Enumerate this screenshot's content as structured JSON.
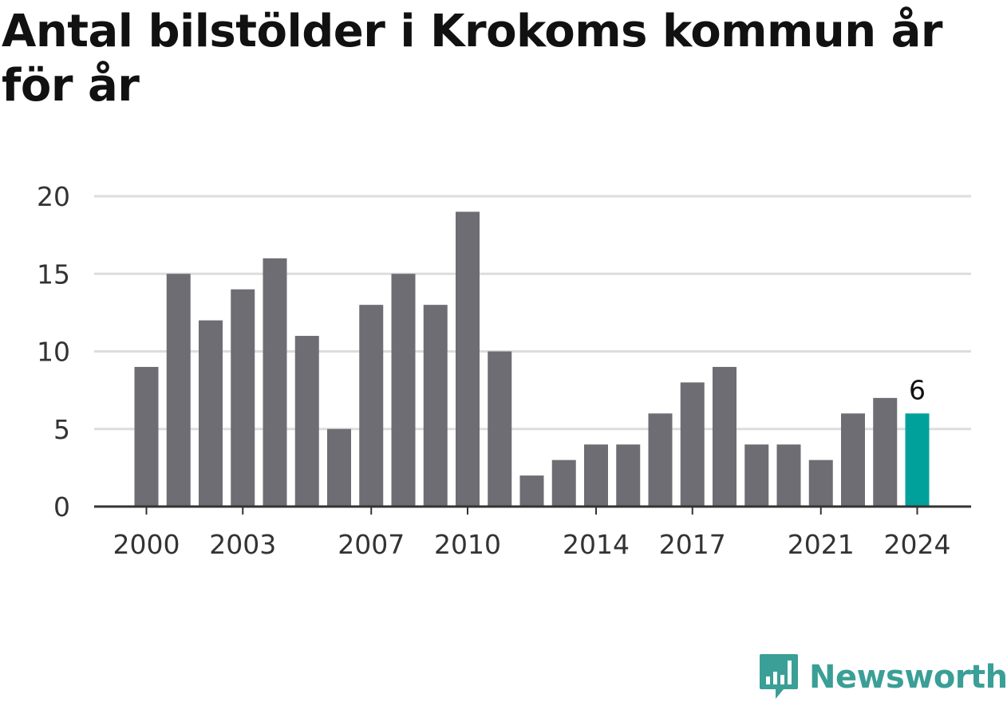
{
  "chart_data": {
    "type": "bar",
    "title": "Antal bilstölder i Krokoms kommun år för år",
    "xlabel": "",
    "ylabel": "",
    "categories": [
      2000,
      2001,
      2002,
      2003,
      2004,
      2005,
      2006,
      2007,
      2008,
      2009,
      2010,
      2011,
      2012,
      2013,
      2014,
      2015,
      2016,
      2017,
      2018,
      2019,
      2020,
      2021,
      2022,
      2023,
      2024
    ],
    "values": [
      9,
      15,
      12,
      14,
      16,
      11,
      5,
      13,
      15,
      13,
      19,
      10,
      2,
      3,
      4,
      4,
      6,
      8,
      9,
      4,
      4,
      3,
      6,
      7,
      6
    ],
    "x_tick_labels": [
      "2000",
      "2003",
      "2007",
      "2010",
      "2014",
      "2017",
      "2021",
      "2024"
    ],
    "y_ticks": [
      0,
      5,
      10,
      15,
      20
    ],
    "ylim": [
      0,
      20
    ],
    "grid": true,
    "highlight": {
      "category": 2024,
      "label": "6"
    },
    "colors": {
      "bar": "#6e6d73",
      "highlight": "#00a19a",
      "grid": "#dddddd",
      "axis": "#333333"
    }
  },
  "brand": {
    "name": "Newsworthy",
    "color": "#3a9f96",
    "icon": "chat-bubble-bar-chart-icon"
  }
}
